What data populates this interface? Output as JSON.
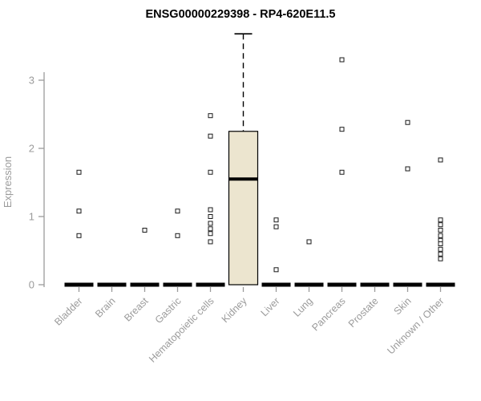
{
  "chart_data": {
    "type": "boxplot",
    "title": "ENSG00000229398 - RP4-620E11.5",
    "ylabel": "Expression",
    "xlabel": "",
    "ylim": [
      0,
      3.8
    ],
    "yticks": [
      0,
      1,
      2,
      3
    ],
    "grid": false,
    "legend": "none",
    "categories": [
      "Bladder",
      "Brain",
      "Breast",
      "Gastric",
      "Hematopoietic cells",
      "Kidney",
      "Liver",
      "Lung",
      "Pancreas",
      "Prostate",
      "Skin",
      "Unknown / Other"
    ],
    "series": [
      {
        "category": "Bladder",
        "q1": 0,
        "median": 0,
        "q3": 0,
        "whisker_low": 0,
        "whisker_high": 0,
        "outliers": [
          1.65,
          1.08,
          0.72
        ]
      },
      {
        "category": "Brain",
        "q1": 0,
        "median": 0,
        "q3": 0,
        "whisker_low": 0,
        "whisker_high": 0,
        "outliers": []
      },
      {
        "category": "Breast",
        "q1": 0,
        "median": 0,
        "q3": 0,
        "whisker_low": 0,
        "whisker_high": 0,
        "outliers": [
          0.8
        ]
      },
      {
        "category": "Gastric",
        "q1": 0,
        "median": 0,
        "q3": 0,
        "whisker_low": 0,
        "whisker_high": 0,
        "outliers": [
          1.08,
          0.72
        ]
      },
      {
        "category": "Hematopoietic cells",
        "q1": 0,
        "median": 0,
        "q3": 0,
        "whisker_low": 0,
        "whisker_high": 0,
        "outliers": [
          2.48,
          2.18,
          1.65,
          1.1,
          1.0,
          0.9,
          0.82,
          0.75,
          0.63
        ]
      },
      {
        "category": "Kidney",
        "q1": 0,
        "median": 1.55,
        "q3": 2.25,
        "whisker_low": 0,
        "whisker_high": 3.68,
        "outliers": []
      },
      {
        "category": "Liver",
        "q1": 0,
        "median": 0,
        "q3": 0,
        "whisker_low": 0,
        "whisker_high": 0,
        "outliers": [
          0.95,
          0.85,
          0.22
        ]
      },
      {
        "category": "Lung",
        "q1": 0,
        "median": 0,
        "q3": 0,
        "whisker_low": 0,
        "whisker_high": 0,
        "outliers": [
          0.63
        ]
      },
      {
        "category": "Pancreas",
        "q1": 0,
        "median": 0,
        "q3": 0,
        "whisker_low": 0,
        "whisker_high": 0,
        "outliers": [
          3.3,
          2.28,
          1.65
        ]
      },
      {
        "category": "Prostate",
        "q1": 0,
        "median": 0,
        "q3": 0,
        "whisker_low": 0,
        "whisker_high": 0,
        "outliers": []
      },
      {
        "category": "Skin",
        "q1": 0,
        "median": 0,
        "q3": 0,
        "whisker_low": 0,
        "whisker_high": 0,
        "outliers": [
          2.38,
          1.7
        ]
      },
      {
        "category": "Unknown / Other",
        "q1": 0,
        "median": 0,
        "q3": 0,
        "whisker_low": 0,
        "whisker_high": 0,
        "outliers": [
          1.83,
          0.95,
          0.88,
          0.8,
          0.72,
          0.65,
          0.6,
          0.52,
          0.45,
          0.38
        ]
      }
    ],
    "colors": {
      "box_fill": "#ece5cf",
      "box_stroke": "#000000",
      "median": "#000000",
      "zero_bar": "#000000",
      "axis": "#9b9b9b",
      "tick_label": "#9b9b9b",
      "title": "#000000",
      "outlier_stroke": "#1a1a1a",
      "outlier_fill": "#ffffff",
      "background": "#ffffff"
    }
  }
}
